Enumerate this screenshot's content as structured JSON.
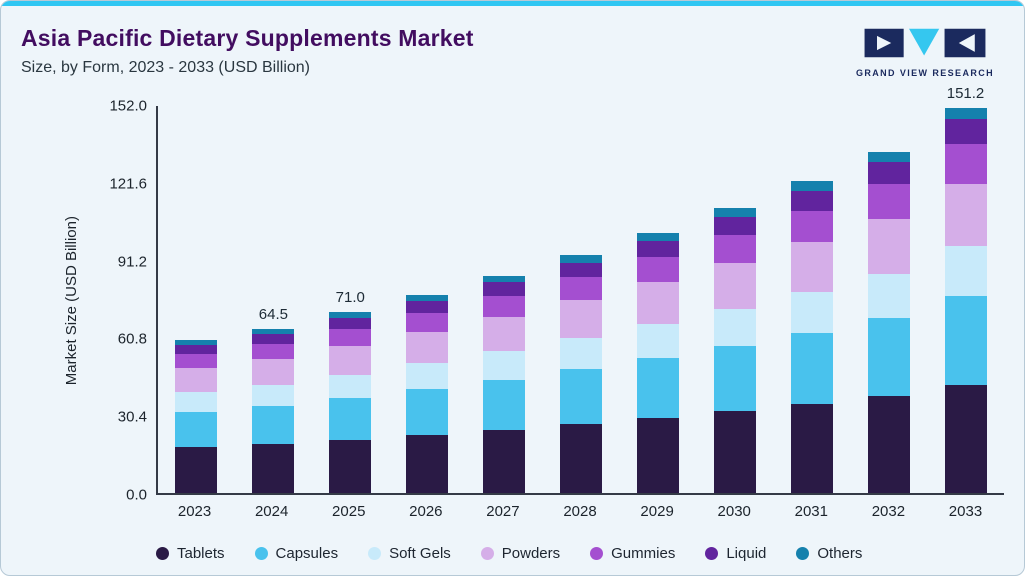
{
  "header": {
    "title": "Asia Pacific Dietary Supplements Market",
    "subtitle": "Size, by Form, 2023 - 2033 (USD Billion)"
  },
  "brand": {
    "name": "GRAND VIEW RESEARCH"
  },
  "colors": {
    "accent_bar": "#2fc6f2",
    "card_bg": "#eef5fa",
    "title_text": "#420d60",
    "axis_line": "#343a46",
    "brand_navy": "#1b2a5e",
    "brand_cyan": "#35c7ef"
  },
  "chart_data": {
    "type": "bar",
    "stacked": true,
    "title": "Asia Pacific Dietary Supplements Market Size, by Form, 2023 - 2033 (USD Billion)",
    "xlabel": "",
    "ylabel": "Market Size (USD Billion)",
    "ylim": [
      0,
      152
    ],
    "ytick_labels": [
      "0.0",
      "30.4",
      "60.8",
      "91.2",
      "121.6",
      "152.0"
    ],
    "grid": false,
    "legend_position": "bottom",
    "categories": [
      "2023",
      "2024",
      "2025",
      "2026",
      "2027",
      "2028",
      "2029",
      "2030",
      "2031",
      "2032",
      "2033"
    ],
    "total_labels": [
      "",
      "64.5",
      "71.0",
      "",
      "",
      "",
      "",
      "",
      "",
      "",
      "151.2"
    ],
    "series": [
      {
        "name": "Tablets",
        "color": "#2a1a45",
        "values": [
          18.0,
          19.2,
          21.0,
          22.9,
          24.9,
          27.1,
          29.5,
          32.1,
          34.9,
          38.0,
          42.6
        ]
      },
      {
        "name": "Capsules",
        "color": "#49c2ed",
        "values": [
          13.8,
          14.8,
          16.3,
          17.9,
          19.6,
          21.5,
          23.5,
          25.7,
          28.1,
          30.8,
          34.8
        ]
      },
      {
        "name": "Soft Gels",
        "color": "#c8eafa",
        "values": [
          7.8,
          8.4,
          9.2,
          10.1,
          11.1,
          12.1,
          13.3,
          14.5,
          15.9,
          17.4,
          19.6
        ]
      },
      {
        "name": "Powders",
        "color": "#d5aee8",
        "values": [
          9.6,
          10.3,
          11.4,
          12.5,
          13.7,
          15.0,
          16.4,
          18.0,
          19.7,
          21.6,
          24.4
        ]
      },
      {
        "name": "Gummies",
        "color": "#a44fd0",
        "values": [
          5.4,
          5.9,
          6.6,
          7.3,
          8.1,
          9.0,
          10.0,
          11.1,
          12.3,
          13.6,
          15.6
        ]
      },
      {
        "name": "Liquid",
        "color": "#61249e",
        "values": [
          3.6,
          3.9,
          4.3,
          4.8,
          5.3,
          5.8,
          6.4,
          7.1,
          7.8,
          8.6,
          9.8
        ]
      },
      {
        "name": "Others",
        "color": "#1581ad",
        "values": [
          1.8,
          2.0,
          2.2,
          2.4,
          2.6,
          2.9,
          3.1,
          3.4,
          3.7,
          4.0,
          4.4
        ]
      }
    ]
  }
}
